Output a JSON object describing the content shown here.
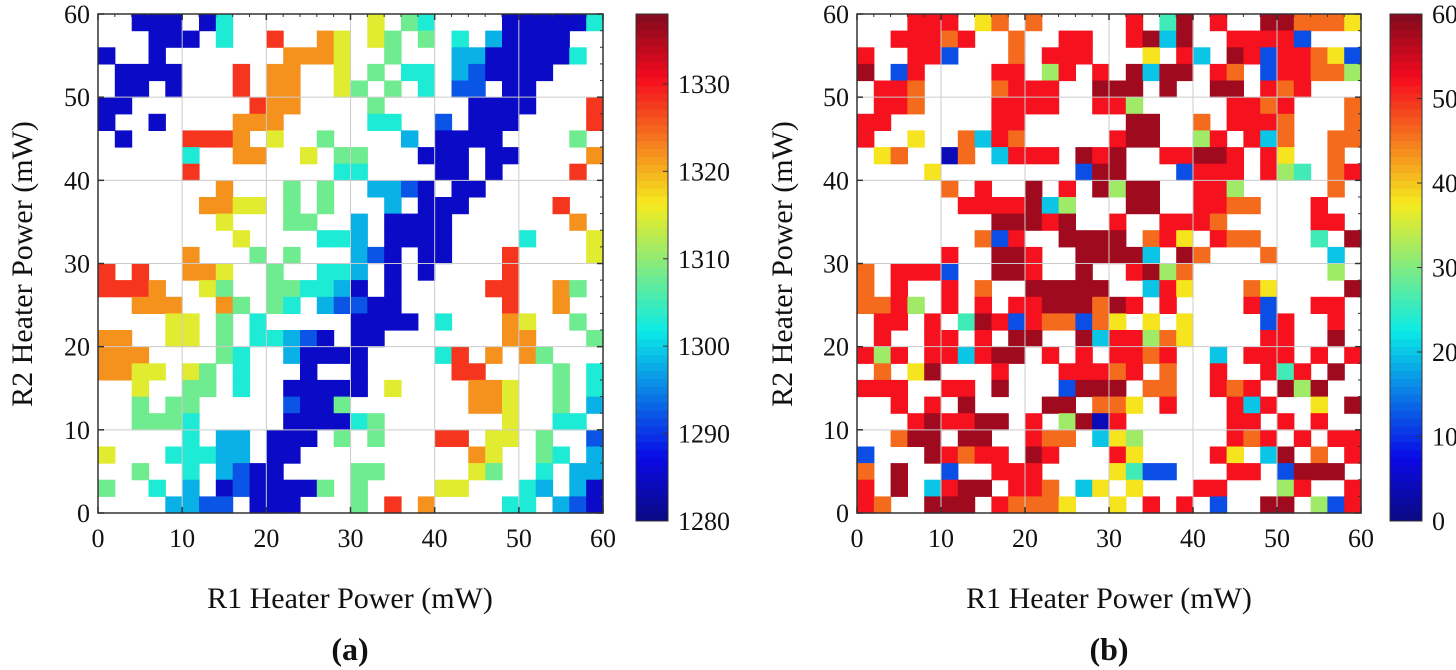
{
  "chart_data": [
    {
      "type": "heatmap",
      "panel_label": "(a)",
      "xlabel": "R1 Heater Power (mW)",
      "ylabel": "R2 Heater Power (mW)",
      "xlim": [
        0,
        60
      ],
      "ylim": [
        0,
        60
      ],
      "xticks": [
        0,
        10,
        20,
        30,
        40,
        50,
        60
      ],
      "yticks": [
        0,
        10,
        20,
        30,
        40,
        50,
        60
      ],
      "grid": true,
      "colormap": "jet",
      "colorbar": {
        "range": [
          1280,
          1338
        ],
        "ticks": [
          1280,
          1290,
          1300,
          1310,
          1320,
          1330
        ]
      },
      "cell_size_mW": 2,
      "rows_note_order": "top row = highest R2 power",
      "levels": {
        "B": 1285,
        "b": 1292,
        "c": 1298,
        "t": 1303,
        "g": 1308,
        "y": 1315,
        "o": 1322,
        "r": 1328
      },
      "rows": [
        "..BBB.Bt........y.gt....BBBBBt",
        "...BBB.t..r..oy.yg.g.t.cBBBB..",
        "B..B.......oooy..g...ccBBBBBt.",
        ".BBBB...r.oo..y.g.tt.cbBBBB...",
        ".BB.B...r.oo..yg.g.t.bb.BB....",
        "BB.......roo....g.....BBBB...r",
        "B..B....ooo.....tt..b.BBB....r",
        ".B...rrro.y..g....c.BBBB....g.",
        ".....t..oo..y.gg...BBB.BB....o",
        ".....r........tt....BB.B....r.",
        ".......o...g.g..ccbB.BB.......",
        "......ooyy.g.g...c.BBB.....r..",
        ".......y...gg..c.BBBB.......o.",
        "........y....ttc.BBBB....t...y",
        ".....o...g.g...cbB.BB...r....y",
        "r.r..ooy..g..ttc.B.B....r.....",
        "rrro..yg..ggttcB.B.....rr..og.",
        "..ooo..og.gt.cbbBB......r..o..",
        "....yy.g.t.....BBBB.t...oy..g.",
        "oo..yy.g.ttcbB.BB.......oo...g",
        "ooo....gt..cBBBB....tr.o.og...",
        "ooyy.yg.t...B..B.....rr....g.t",
        "..y..gg.t..BBBBB.y....ooy..g.t",
        "..g.gg.....bBBg.......ooy..g.c",
        "..gggt.....BBBBtg.......y..tt.",
        ".....t.cc.BBB.g.g...rr.yy.g..b",
        "y...tttcc.BB..........oy..gt.c",
        "..g..t.cbBB....gg.....yg..t.cc",
        "g..t.c.BbBBBBg.g....yy...tc.cB",
        "....ccbb.BBB...g.r.o....tt.cbB"
      ]
    },
    {
      "type": "heatmap",
      "panel_label": "(b)",
      "xlabel": "R1 Heater Power (mW)",
      "ylabel": "R2 Heater Power (mW)",
      "xlim": [
        0,
        60
      ],
      "ylim": [
        0,
        60
      ],
      "xticks": [
        0,
        10,
        20,
        30,
        40,
        50,
        60
      ],
      "yticks": [
        0,
        10,
        20,
        30,
        40,
        50,
        60
      ],
      "grid": true,
      "colormap": "jet",
      "colorbar": {
        "range": [
          0,
          60
        ],
        "ticks": [
          0,
          10,
          20,
          30,
          40,
          50,
          60
        ]
      },
      "cell_size_mW": 2,
      "levels": {
        "B": 4,
        "b": 12,
        "c": 20,
        "t": 26,
        "g": 32,
        "y": 38,
        "o": 46,
        "r": 52,
        "R": 58
      },
      "rows": [
        "...rrr.yo.o.....r.tR.r..RRoooy",
        "..rrror..o..rr..rRcR..rrrrb...",
        "r..rrb...o.rrr...y.rc.Rrbrroyb",
        "R.br....rr.gr.r.RcRR.ro.brroog",
        ".rro....orrr..RRR.R..RR.ror...",
        ".rro....rrrr..rrg.....rror...o",
        "rr......rr......RR..o.rrro...o",
        "r..y..ocro.....rRR..gr.rco..oo",
        ".yo..Bo.crrr.RrR..rrRRr.ry..o.",
        "....y........bRR...brrr.rgt.or",
        ".....o.r..R.r.RgRR..rrg.....o.",
        "......rrrrRcg...RR..rroo...r..",
        "........RRRrR..r..rrro.....rr.",
        ".......obr..RRRR.ory.roo...t.R",
        ".....r..RRr..RRRRc.Ro...o...c.",
        "o.rrrb..RRr..R..rRgo........g.",
        "o.r..r.o..RRRRR..cry...oy....R",
        "oorg.r.r.rrRRRoRr.r....rb..rr.",
        ".rr.r.tRrbrooboy.y.y....br..r.",
        ".r..rr.r.RR..Rcrrgoy....rr..R.",
        "rgr.rrcrRR.r.r.rror..c.rrr.r.r",
        ".o.yR...r...rrror.o..r..rtr.R.",
        "rrr..rr.R...bRRR.oo..ror.RgR..",
        "..r.r.R....RR.ooy.r...rcr..y.R",
        "...rRrrRR.r.gRBr......rr.r.r..",
        "..oRR.RR..roo.cyg.....ror.r.rr",
        "b...Rrorr.Rr...ry....ry.cR.o.r",
        "o.R..b..rrr....ytbb...rr.bRRR.",
        "r.R.crRR.rro.cy.y...rr...gr..r",
        "ro..RRR.roooy..y.r.r.b..RR.gbr"
      ]
    }
  ]
}
